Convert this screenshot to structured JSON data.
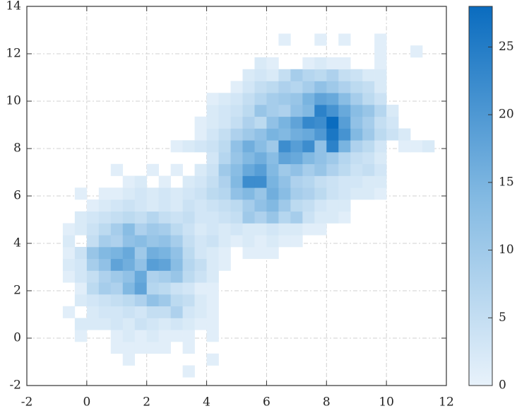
{
  "chart_data": {
    "type": "hist2d",
    "xlim": [
      -2,
      12
    ],
    "ylim": [
      -2,
      14
    ],
    "xticks": [
      -2,
      0,
      2,
      4,
      6,
      8,
      10,
      12
    ],
    "yticks": [
      -2,
      0,
      2,
      4,
      6,
      8,
      10,
      12,
      14
    ],
    "grid": true,
    "clim": [
      0,
      28
    ],
    "cticks": [
      0,
      5,
      10,
      15,
      20,
      25
    ],
    "colormap": [
      "#e8f2fb",
      "#82b9e2",
      "#0a6cbf"
    ],
    "xbins": [
      -0.8,
      -0.4,
      0,
      0.4,
      0.8,
      1.2,
      1.6,
      2,
      2.4,
      2.8,
      3.2,
      3.6,
      4,
      4.4,
      4.8,
      5.2,
      5.6,
      6,
      6.4,
      6.8,
      7.2,
      7.6,
      8,
      8.4,
      8.8,
      9.2,
      9.6,
      10,
      10.4,
      10.8,
      11.2,
      11.6
    ],
    "ybins": [
      -1.65,
      -1.15,
      -0.65,
      -0.15,
      0.35,
      0.85,
      1.35,
      1.85,
      2.35,
      2.85,
      3.35,
      3.85,
      4.35,
      4.85,
      5.35,
      5.85,
      6.35,
      6.85,
      7.35,
      7.85,
      8.35,
      8.85,
      9.35,
      9.85,
      10.35,
      10.85,
      11.35,
      11.85,
      12.35,
      12.85
    ],
    "counts": [
      [
        null,
        null,
        null,
        null,
        null,
        null,
        null,
        null,
        null,
        null,
        1,
        null,
        null,
        null,
        null,
        null,
        null,
        null,
        null,
        null,
        null,
        null,
        null,
        null,
        null,
        null,
        null,
        null,
        null,
        null,
        null
      ],
      [
        null,
        null,
        null,
        null,
        null,
        1,
        null,
        null,
        null,
        null,
        null,
        null,
        1,
        null,
        null,
        null,
        null,
        null,
        null,
        null,
        null,
        null,
        null,
        null,
        null,
        null,
        null,
        null,
        null,
        null,
        null
      ],
      [
        null,
        null,
        null,
        null,
        1,
        1,
        1,
        1,
        1,
        null,
        1,
        null,
        null,
        null,
        null,
        null,
        null,
        null,
        null,
        null,
        null,
        null,
        null,
        null,
        null,
        null,
        null,
        null,
        null,
        null,
        null
      ],
      [
        null,
        1,
        null,
        null,
        1,
        2,
        1,
        2,
        1,
        1,
        1,
        null,
        1,
        null,
        null,
        null,
        null,
        null,
        null,
        null,
        null,
        null,
        null,
        null,
        null,
        null,
        null,
        null,
        null,
        null,
        null
      ],
      [
        null,
        2,
        2,
        2,
        3,
        2,
        4,
        3,
        2,
        3,
        2,
        1,
        1,
        null,
        null,
        null,
        null,
        null,
        null,
        null,
        null,
        null,
        null,
        null,
        null,
        null,
        null,
        null,
        null,
        null,
        null
      ],
      [
        1,
        null,
        2,
        3,
        3,
        4,
        3,
        5,
        5,
        8,
        3,
        2,
        1,
        null,
        null,
        null,
        null,
        null,
        null,
        null,
        null,
        null,
        null,
        null,
        null,
        null,
        null,
        null,
        null,
        null,
        null
      ],
      [
        null,
        2,
        3,
        4,
        5,
        6,
        8,
        12,
        10,
        6,
        5,
        2,
        1,
        null,
        null,
        null,
        null,
        null,
        null,
        null,
        null,
        null,
        null,
        null,
        null,
        null,
        null,
        null,
        null,
        null,
        null
      ],
      [
        null,
        1,
        6,
        9,
        8,
        14,
        18,
        7,
        6,
        4,
        3,
        1,
        1,
        null,
        null,
        null,
        null,
        null,
        null,
        null,
        null,
        null,
        null,
        null,
        null,
        null,
        null,
        null,
        null,
        null,
        null
      ],
      [
        1,
        3,
        5,
        8,
        10,
        12,
        17,
        8,
        9,
        11,
        6,
        4,
        2,
        null,
        null,
        null,
        null,
        null,
        null,
        null,
        null,
        null,
        null,
        null,
        null,
        null,
        null,
        null,
        null,
        null,
        null
      ],
      [
        2,
        3,
        9,
        12,
        18,
        16,
        12,
        19,
        18,
        13,
        7,
        5,
        2,
        1,
        null,
        null,
        null,
        null,
        null,
        null,
        null,
        null,
        null,
        null,
        null,
        null,
        null,
        null,
        null,
        null,
        null
      ],
      [
        1,
        4,
        11,
        14,
        15,
        17,
        10,
        16,
        15,
        12,
        6,
        3,
        2,
        1,
        null,
        1,
        1,
        1,
        null,
        null,
        null,
        null,
        null,
        null,
        null,
        null,
        null,
        null,
        null,
        null,
        null
      ],
      [
        2,
        null,
        5,
        9,
        8,
        12,
        13,
        11,
        12,
        9,
        5,
        3,
        4,
        2,
        1,
        2,
        1,
        2,
        1,
        1,
        null,
        null,
        null,
        null,
        null,
        null,
        null,
        null,
        null,
        null,
        null
      ],
      [
        1,
        2,
        4,
        6,
        9,
        13,
        8,
        10,
        9,
        6,
        4,
        2,
        3,
        2,
        3,
        2,
        2,
        3,
        2,
        2,
        1,
        1,
        null,
        null,
        null,
        null,
        null,
        null,
        null,
        null,
        null
      ],
      [
        null,
        2,
        3,
        4,
        5,
        6,
        5,
        7,
        5,
        4,
        5,
        3,
        3,
        4,
        5,
        10,
        8,
        11,
        7,
        9,
        4,
        2,
        2,
        1,
        null,
        null,
        null,
        null,
        null,
        null,
        null
      ],
      [
        null,
        null,
        1,
        2,
        3,
        4,
        3,
        2,
        3,
        2,
        4,
        3,
        4,
        5,
        6,
        9,
        12,
        14,
        10,
        6,
        5,
        3,
        2,
        2,
        null,
        null,
        null,
        null,
        null,
        null,
        null
      ],
      [
        null,
        1,
        null,
        1,
        1,
        2,
        3,
        2,
        3,
        2,
        3,
        4,
        6,
        7,
        12,
        14,
        11,
        16,
        13,
        9,
        8,
        6,
        4,
        3,
        2,
        2,
        1,
        null,
        null,
        null,
        null
      ],
      [
        null,
        null,
        null,
        null,
        null,
        1,
        2,
        null,
        1,
        null,
        2,
        3,
        5,
        8,
        14,
        22,
        22,
        15,
        12,
        8,
        7,
        5,
        4,
        3,
        3,
        2,
        2,
        null,
        null,
        null,
        null
      ],
      [
        null,
        null,
        null,
        null,
        1,
        null,
        null,
        1,
        null,
        1,
        null,
        2,
        4,
        10,
        13,
        17,
        19,
        14,
        10,
        12,
        9,
        11,
        8,
        6,
        4,
        5,
        3,
        null,
        null,
        null,
        null
      ],
      [
        null,
        null,
        null,
        null,
        null,
        null,
        null,
        null,
        null,
        null,
        null,
        null,
        3,
        7,
        11,
        14,
        16,
        13,
        18,
        17,
        14,
        12,
        10,
        7,
        5,
        4,
        2,
        null,
        null,
        null,
        null
      ],
      [
        null,
        null,
        null,
        null,
        null,
        null,
        null,
        null,
        null,
        1,
        2,
        3,
        4,
        6,
        12,
        16,
        13,
        10,
        22,
        19,
        22,
        12,
        24,
        15,
        8,
        6,
        3,
        null,
        1,
        1,
        2
      ],
      [
        null,
        null,
        null,
        null,
        null,
        null,
        null,
        null,
        null,
        null,
        null,
        1,
        3,
        5,
        8,
        10,
        12,
        15,
        14,
        16,
        17,
        20,
        26,
        21,
        14,
        10,
        6,
        4,
        2,
        null,
        null
      ],
      [
        null,
        null,
        null,
        null,
        null,
        null,
        null,
        null,
        null,
        null,
        null,
        1,
        2,
        3,
        5,
        8,
        6,
        12,
        15,
        18,
        23,
        22,
        28,
        19,
        12,
        9,
        5,
        3,
        null,
        null,
        null
      ],
      [
        null,
        null,
        null,
        null,
        null,
        null,
        null,
        null,
        null,
        null,
        null,
        null,
        2,
        3,
        4,
        6,
        11,
        9,
        8,
        12,
        14,
        24,
        21,
        17,
        13,
        11,
        7,
        2,
        null,
        null,
        null
      ],
      [
        null,
        null,
        null,
        null,
        null,
        null,
        null,
        null,
        null,
        null,
        null,
        null,
        1,
        2,
        3,
        5,
        7,
        9,
        10,
        11,
        15,
        18,
        17,
        13,
        9,
        6,
        4,
        null,
        null,
        null,
        null
      ],
      [
        null,
        null,
        null,
        null,
        null,
        null,
        null,
        null,
        null,
        null,
        null,
        null,
        null,
        null,
        1,
        3,
        5,
        6,
        8,
        7,
        9,
        12,
        10,
        8,
        6,
        5,
        2,
        null,
        null,
        null,
        null
      ],
      [
        null,
        null,
        null,
        null,
        null,
        null,
        null,
        null,
        null,
        null,
        null,
        null,
        null,
        null,
        null,
        2,
        3,
        2,
        5,
        9,
        7,
        6,
        8,
        5,
        4,
        2,
        2,
        null,
        null,
        null,
        null
      ],
      [
        null,
        null,
        null,
        null,
        null,
        null,
        null,
        null,
        null,
        null,
        null,
        null,
        null,
        null,
        null,
        null,
        2,
        1,
        null,
        null,
        1,
        2,
        1,
        1,
        null,
        null,
        1,
        null,
        null,
        null,
        null
      ],
      [
        null,
        null,
        null,
        null,
        null,
        null,
        null,
        null,
        null,
        null,
        null,
        null,
        null,
        null,
        null,
        null,
        null,
        null,
        null,
        null,
        null,
        null,
        null,
        null,
        null,
        null,
        1,
        null,
        null,
        1,
        null
      ],
      [
        null,
        null,
        null,
        null,
        null,
        null,
        null,
        null,
        null,
        null,
        null,
        null,
        null,
        null,
        null,
        null,
        null,
        null,
        1,
        null,
        null,
        1,
        null,
        1,
        null,
        null,
        1,
        null,
        null,
        null,
        null
      ]
    ]
  }
}
